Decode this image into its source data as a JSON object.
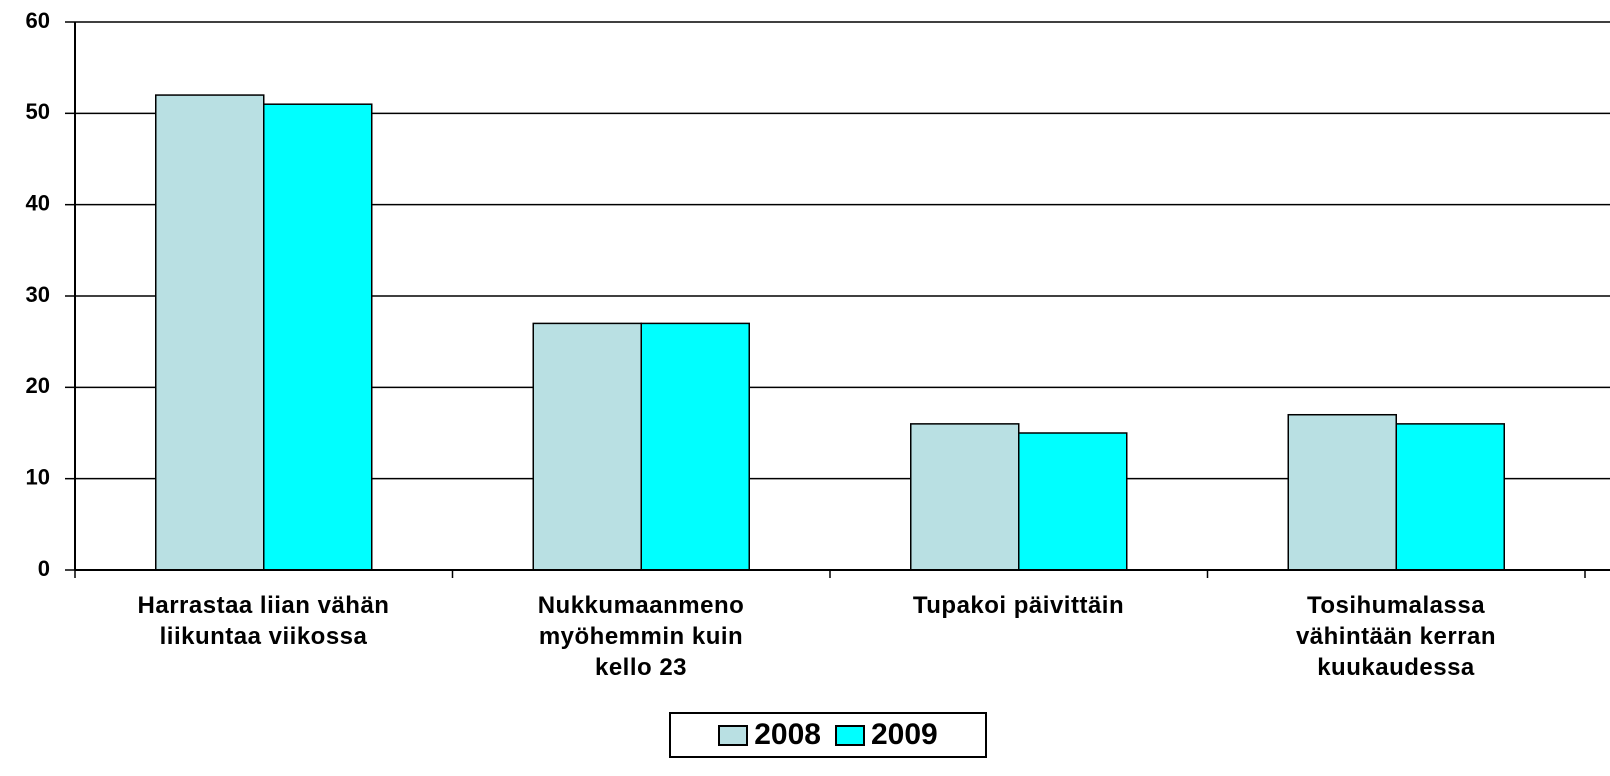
{
  "chart_data": {
    "type": "bar",
    "categories": [
      "Harrastaa liian vähän\nliikuntaa viikossa",
      "Nukkumaanmeno\nmyöhemmin kuin\nkello 23",
      "Tupakoi päivittäin",
      "Tosihumalassa\nvähintään kerran\nkuukaudessa"
    ],
    "series": [
      {
        "name": "2008",
        "color": "#b9e0e3",
        "values": [
          52,
          27,
          16,
          17
        ]
      },
      {
        "name": "2009",
        "color": "#00ffff",
        "values": [
          51,
          27,
          15,
          16
        ]
      }
    ],
    "ylim": [
      0,
      60
    ],
    "yticks": [
      0,
      10,
      20,
      30,
      40,
      50,
      60
    ],
    "grid": true,
    "legend": "bottom"
  }
}
